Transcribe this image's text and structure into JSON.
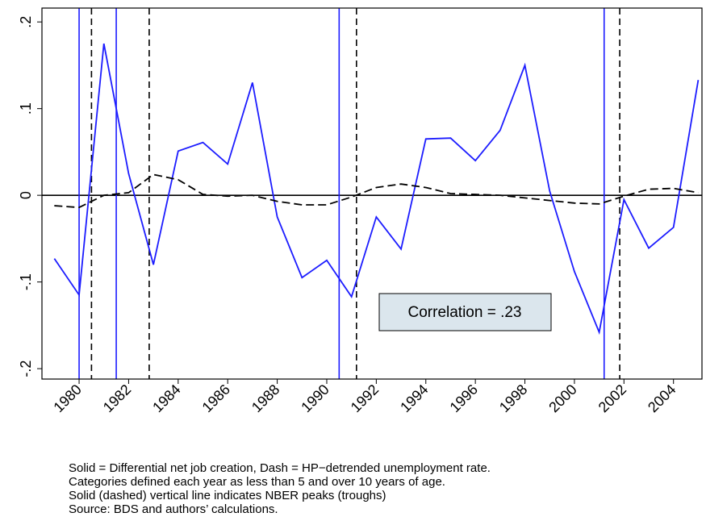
{
  "chart_data": {
    "type": "line",
    "x": [
      1979,
      1980,
      1981,
      1982,
      1983,
      1984,
      1985,
      1986,
      1987,
      1988,
      1989,
      1990,
      1991,
      1992,
      1993,
      1994,
      1995,
      1996,
      1997,
      1998,
      1999,
      2000,
      2001,
      2002,
      2003,
      2004,
      2005
    ],
    "series": [
      {
        "color": "#1c1cff",
        "dash": false,
        "values": [
          -0.073,
          -0.115,
          0.175,
          0.025,
          -0.08,
          0.051,
          0.061,
          0.036,
          0.13,
          -0.025,
          -0.095,
          -0.075,
          -0.117,
          -0.025,
          -0.062,
          0.065,
          0.066,
          0.04,
          0.075,
          0.15,
          0.005,
          -0.088,
          -0.158,
          -0.005,
          -0.061,
          -0.037,
          0.133
        ]
      },
      {
        "color": "#000000",
        "dash": true,
        "values": [
          -0.012,
          -0.014,
          0.0,
          0.003,
          0.024,
          0.018,
          0.001,
          -0.001,
          0.0,
          -0.007,
          -0.011,
          -0.011,
          -0.002,
          0.009,
          0.013,
          0.009,
          0.002,
          0.001,
          0.0,
          -0.003,
          -0.006,
          -0.009,
          -0.01,
          -0.001,
          0.007,
          0.008,
          0.003
        ]
      }
    ],
    "xlim": [
      1978.5,
      2005.15
    ],
    "ylim": [
      -0.212,
      0.216
    ],
    "xticks": [
      1980,
      1982,
      1984,
      1986,
      1988,
      1990,
      1992,
      1994,
      1996,
      1998,
      2000,
      2002,
      2004
    ],
    "yticks": [
      {
        "value": -0.2,
        "label": "-.2"
      },
      {
        "value": -0.1,
        "label": "-.1"
      },
      0,
      {
        "value": 0.1,
        "label": ".1"
      },
      {
        "value": 0.2,
        "label": ".2"
      }
    ],
    "zero_line": 0,
    "peaks": [
      1980.0,
      1981.5,
      1990.5,
      2001.2
    ],
    "troughs": [
      1980.5,
      1982.83,
      1991.2,
      2001.83
    ],
    "annotation": "Correlation = .23",
    "notes": [
      "Solid = Differential net job creation, Dash = HP−detrended unemployment rate.",
      "Categories defined each year as less than 5 and over 10 years of age.",
      "Solid (dashed) vertical line indicates NBER peaks (troughs)",
      "Source: BDS and authors’ calculations."
    ]
  }
}
